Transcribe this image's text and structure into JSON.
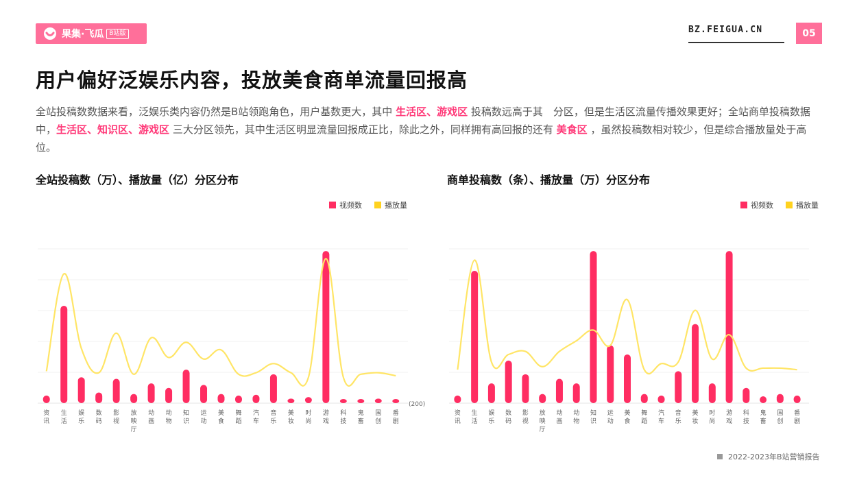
{
  "header": {
    "logo_text": "果集·飞瓜",
    "logo_tag": "B站版",
    "site": "BZ.FEIGUA.CN",
    "page_number": "05"
  },
  "title": "用户偏好泛娱乐内容，投放美食商单流量回报高",
  "description": {
    "p1": "全站投稿数数据来看，泛娱乐类内容仍然是B站领跑角色，用户基数更大，其中",
    "h1": "生活区、游戏区",
    "p2": "投稿数远高于其　分区，但是生活区流量传播效果更好；全站商单投稿数据中，",
    "h2": "生活区、知识区、游戏区",
    "p3": "三大分区领先，其中生活区明显流量回报成正比，除此之外，同样拥有高回报的还有",
    "h3": "美食区",
    "p4": "，虽然投稿数相对较少，但是综合播放量处于高位。"
  },
  "colors": {
    "brand": "#ff6f9a",
    "bar": "#ff2d62",
    "line": "#ffe566",
    "highlight": "#ff3a79"
  },
  "legend": {
    "bar_label": "视频数",
    "line_label": "播放量"
  },
  "footer": "2022-2023年B站营销报告",
  "chart_data": [
    {
      "type": "bar",
      "title": "全站投稿数（万）、播放量（亿）分区分布",
      "categories": [
        "资讯",
        "生活",
        "娱乐",
        "数码",
        "影视",
        "放映厅",
        "动画",
        "动物",
        "知识",
        "运动",
        "美食",
        "舞蹈",
        "汽车",
        "音乐",
        "美妆",
        "时尚",
        "游戏",
        "科技",
        "鬼畜",
        "国创",
        "番剧"
      ],
      "axis_note": "(200)",
      "series": [
        {
          "name": "视频数",
          "kind": "bar",
          "values": [
            5,
            64,
            17,
            7,
            16,
            6,
            13,
            10,
            22,
            12,
            6,
            5,
            5.5,
            19,
            3,
            4,
            100,
            2.5,
            2,
            3,
            2
          ]
        },
        {
          "name": "播放量",
          "kind": "line",
          "values": [
            21,
            85,
            36,
            20,
            46,
            19,
            43,
            30,
            40,
            29,
            35,
            19,
            20,
            26,
            20,
            17,
            95,
            17,
            19,
            20,
            18
          ]
        }
      ],
      "ylim": [
        0,
        105
      ],
      "grid": true
    },
    {
      "type": "bar",
      "title": "商单投稿数（条）、播放量（万）分区分布",
      "categories": [
        "资讯",
        "生活",
        "娱乐",
        "数码",
        "影视",
        "放映厅",
        "动画",
        "动物",
        "知识",
        "运动",
        "美食",
        "舞蹈",
        "汽车",
        "音乐",
        "美妆",
        "时尚",
        "游戏",
        "科技",
        "鬼畜",
        "国创",
        "番剧"
      ],
      "series": [
        {
          "name": "视频数",
          "kind": "bar",
          "values": [
            5,
            87,
            13,
            28,
            19,
            6,
            16,
            13,
            100,
            38,
            32,
            6,
            5,
            21,
            52,
            13,
            100,
            10,
            4.5,
            6,
            5
          ]
        },
        {
          "name": "播放量",
          "kind": "line",
          "values": [
            22,
            94,
            27,
            32,
            34,
            24,
            34,
            41,
            48,
            38,
            68,
            22,
            26,
            27,
            61,
            29,
            45,
            23,
            23,
            23,
            22
          ]
        }
      ],
      "ylim": [
        0,
        105
      ],
      "grid": true
    }
  ]
}
